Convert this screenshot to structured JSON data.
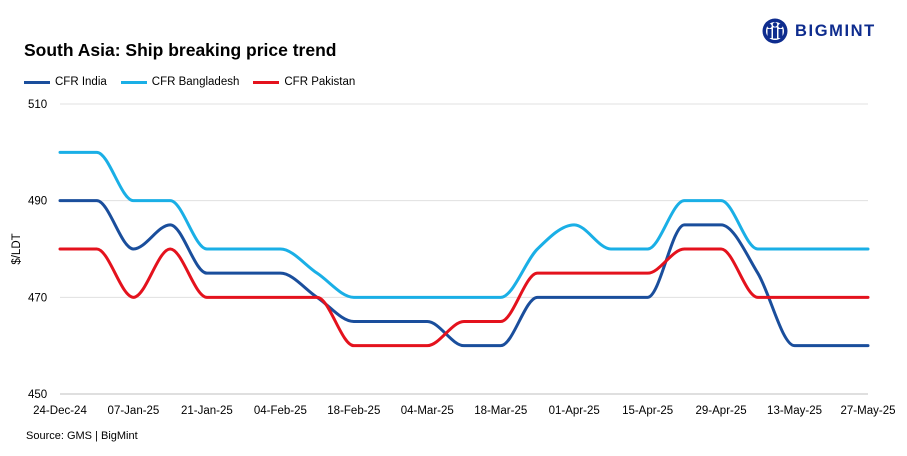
{
  "title": "South Asia: Ship breaking price trend",
  "brand": {
    "name": "BIGMINT",
    "color": "#0e2c8e",
    "icon": "bigmint-logo-icon"
  },
  "source": "Source: GMS | BigMint",
  "chart_data": {
    "type": "line",
    "title": "South Asia: Ship breaking price trend",
    "ylabel": "$/LDT",
    "xlabel": "",
    "ylim": [
      450,
      510
    ],
    "yticks": [
      450,
      470,
      490,
      510
    ],
    "grid": true,
    "legend_position": "top-left",
    "categories": [
      "24-Dec-24",
      "31-Dec-24",
      "07-Jan-25",
      "14-Jan-25",
      "21-Jan-25",
      "28-Jan-25",
      "04-Feb-25",
      "11-Feb-25",
      "18-Feb-25",
      "25-Feb-25",
      "04-Mar-25",
      "11-Mar-25",
      "18-Mar-25",
      "25-Mar-25",
      "01-Apr-25",
      "08-Apr-25",
      "15-Apr-25",
      "22-Apr-25",
      "29-Apr-25",
      "06-May-25",
      "13-May-25",
      "20-May-25",
      "27-May-25"
    ],
    "xtick_labels": [
      "24-Dec-24",
      "07-Jan-25",
      "21-Jan-25",
      "04-Feb-25",
      "18-Feb-25",
      "04-Mar-25",
      "18-Mar-25",
      "01-Apr-25",
      "15-Apr-25",
      "29-Apr-25",
      "13-May-25",
      "27-May-25"
    ],
    "series": [
      {
        "name": "CFR India",
        "color": "#1a4e9c",
        "values": [
          490,
          490,
          480,
          485,
          475,
          475,
          475,
          470,
          465,
          465,
          465,
          460,
          460,
          470,
          470,
          470,
          470,
          485,
          485,
          475,
          460,
          460,
          460
        ]
      },
      {
        "name": "CFR Bangladesh",
        "color": "#1aafe6",
        "values": [
          500,
          500,
          490,
          490,
          480,
          480,
          480,
          475,
          470,
          470,
          470,
          470,
          470,
          480,
          485,
          480,
          480,
          490,
          490,
          480,
          480,
          480,
          480
        ]
      },
      {
        "name": "CFR Pakistan",
        "color": "#e4121d",
        "values": [
          480,
          480,
          470,
          480,
          470,
          470,
          470,
          470,
          460,
          460,
          460,
          465,
          465,
          475,
          475,
          475,
          475,
          480,
          480,
          470,
          470,
          470,
          470
        ]
      }
    ]
  }
}
